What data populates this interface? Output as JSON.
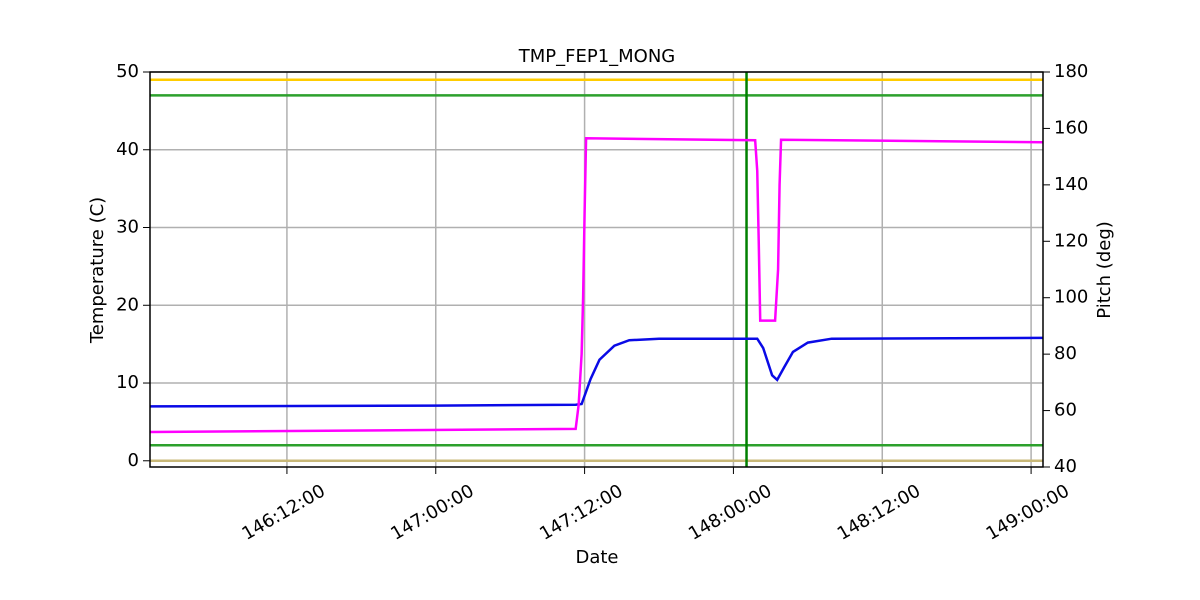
{
  "chart_data": {
    "type": "line",
    "title": "TMP_FEP1_MONG",
    "x_label": "Date",
    "y_label": "Temperature (C)",
    "y2_label": "Pitch (deg)",
    "xlim": [
      146.04,
      149.04
    ],
    "xticks": [
      {
        "value": 146.5,
        "label": "146:12:00"
      },
      {
        "value": 147,
        "label": "147:00:00"
      },
      {
        "value": 147.5,
        "label": "147:12:00"
      },
      {
        "value": 148,
        "label": "148:00:00"
      },
      {
        "value": 148.5,
        "label": "148:12:00"
      },
      {
        "value": 149,
        "label": "149:00:00"
      }
    ],
    "ylim": [
      -0.8,
      50
    ],
    "yticks": [
      0,
      10,
      20,
      30,
      40,
      50
    ],
    "y2lim": [
      40,
      180
    ],
    "y2ticks": [
      40,
      60,
      80,
      100,
      120,
      140,
      160,
      180
    ],
    "y2color": "#ff00ff",
    "grid": true,
    "hlines": [
      {
        "value": 49,
        "color": "#ffcc00"
      },
      {
        "value": 47,
        "color": "#2ca02c"
      },
      {
        "value": 2,
        "color": "#2ca02c"
      },
      {
        "value": 0,
        "color": "#c8b878"
      }
    ],
    "vline": {
      "value": 148.044,
      "color": "#008000"
    },
    "series": [
      {
        "axis": "y",
        "color": "#0a0ae6",
        "x": [
          146.04,
          147.0,
          147.47,
          147.49,
          147.52,
          147.55,
          147.6,
          147.65,
          147.75,
          148.08,
          148.1,
          148.13,
          148.147,
          148.17,
          148.2,
          148.25,
          148.33,
          149.04
        ],
        "values": [
          7.0,
          7.1,
          7.2,
          7.3,
          10.5,
          13.0,
          14.8,
          15.5,
          15.7,
          15.7,
          14.5,
          11.0,
          10.4,
          12.0,
          14.0,
          15.2,
          15.7,
          15.8
        ]
      },
      {
        "axis": "y2",
        "color": "#ff00ff",
        "x": [
          146.04,
          147.47,
          147.48,
          147.49,
          147.495,
          147.5,
          147.505,
          148.073,
          148.08,
          148.085,
          148.09,
          148.14,
          148.15,
          148.155,
          148.16,
          149.04
        ],
        "values": [
          52.4,
          53.5,
          62,
          80,
          100,
          130,
          156.5,
          155.8,
          145,
          120,
          91.9,
          91.9,
          110,
          140,
          156,
          155.1
        ]
      }
    ]
  }
}
